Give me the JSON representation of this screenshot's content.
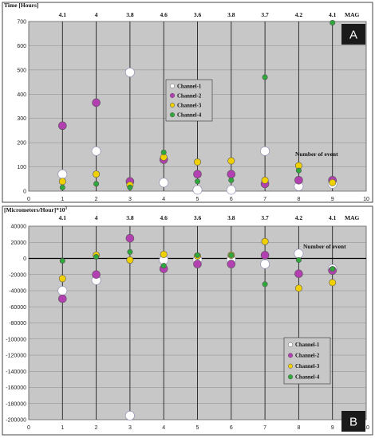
{
  "chart_data": [
    {
      "type": "scatter",
      "ylabel": "Time [Hours]",
      "top_axis_label": "MAG",
      "top_ticks": [
        "4.1",
        "4",
        "3.8",
        "4.6",
        "3.6",
        "3.8",
        "3.7",
        "4.2",
        "4.1"
      ],
      "annotation": "Number of event",
      "panel_letter": "A",
      "xlim": [
        0,
        10
      ],
      "ylim": [
        0,
        700
      ],
      "xticks": [
        0,
        1,
        2,
        3,
        4,
        5,
        6,
        7,
        8,
        9,
        10
      ],
      "yticks": [
        0,
        100,
        200,
        300,
        400,
        500,
        600,
        700
      ],
      "grid": true,
      "legend_position": "center",
      "x": [
        1,
        2,
        3,
        4,
        5,
        6,
        7,
        8,
        9
      ],
      "series": [
        {
          "name": "Channel-1",
          "color": "#ffffff",
          "values": [
            70,
            165,
            490,
            35,
            5,
            5,
            165,
            20,
            30
          ]
        },
        {
          "name": "Channel-2",
          "color": "#b240b0",
          "values": [
            270,
            365,
            40,
            130,
            70,
            70,
            30,
            45,
            45
          ]
        },
        {
          "name": "Channel-3",
          "color": "#f0d000",
          "values": [
            40,
            70,
            25,
            140,
            120,
            125,
            45,
            105,
            35
          ]
        },
        {
          "name": "Channel-4",
          "color": "#2ea83a",
          "values": [
            15,
            30,
            15,
            160,
            40,
            45,
            470,
            85,
            695
          ]
        }
      ]
    },
    {
      "type": "scatter",
      "ylabel": "[Micrometers/Hour]*10",
      "ylabel_sup": "3",
      "top_axis_label": "MAG",
      "top_ticks": [
        "4.1",
        "4",
        "3.8",
        "4.6",
        "3.6",
        "3.8",
        "3.7",
        "4.2",
        "4.1"
      ],
      "annotation": "Number of event",
      "panel_letter": "B",
      "xlim": [
        0,
        10
      ],
      "ylim": [
        -200000,
        40000
      ],
      "xticks": [
        0,
        1,
        2,
        3,
        4,
        5,
        6,
        7,
        8,
        9,
        10
      ],
      "yticks": [
        40000,
        20000,
        0,
        -20000,
        -40000,
        -60000,
        -80000,
        -100000,
        -120000,
        -140000,
        -160000,
        -180000,
        -200000
      ],
      "grid": true,
      "legend_position": "bottom-right",
      "x": [
        1,
        2,
        3,
        4,
        5,
        6,
        7,
        8,
        9
      ],
      "series": [
        {
          "name": "Channel-1",
          "color": "#ffffff",
          "values": [
            -40000,
            -27000,
            -195000,
            -2000,
            -2000,
            -2000,
            -7000,
            6000,
            -13000
          ]
        },
        {
          "name": "Channel-2",
          "color": "#b240b0",
          "values": [
            -50000,
            -20000,
            25000,
            -13000,
            -7000,
            -7000,
            4000,
            -19000,
            -15000
          ]
        },
        {
          "name": "Channel-3",
          "color": "#f0d000",
          "values": [
            -25000,
            4000,
            -2000,
            5000,
            3000,
            4000,
            21000,
            -37000,
            -30000
          ]
        },
        {
          "name": "Channel-4",
          "color": "#2ea83a",
          "values": [
            -3000,
            2000,
            8000,
            -9000,
            4000,
            4000,
            -32000,
            -2000,
            -13000
          ]
        }
      ]
    }
  ]
}
